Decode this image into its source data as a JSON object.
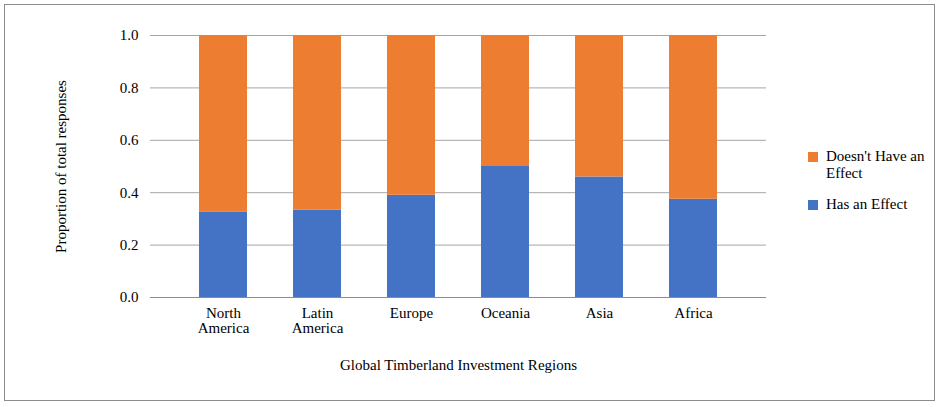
{
  "chart_data": {
    "type": "bar",
    "stacked": true,
    "categories": [
      "North America",
      "Latin America",
      "Europe",
      "Oceania",
      "Asia",
      "Africa"
    ],
    "series": [
      {
        "name": "Has an Effect",
        "color": "#4472c4",
        "values": [
          0.325,
          0.333,
          0.39,
          0.5,
          0.46,
          0.375
        ]
      },
      {
        "name": "Doesn't Have an Effect",
        "color": "#ed7d31",
        "values": [
          0.675,
          0.667,
          0.61,
          0.5,
          0.54,
          0.625
        ]
      }
    ],
    "x_label": "Global Timberland Investment Regions",
    "y_label": "Proportion of total responses",
    "ylim": [
      0,
      1
    ],
    "yticks": [
      {
        "value": 0,
        "label": "0.0"
      },
      0.2,
      0.4,
      0.6,
      0.8,
      {
        "value": 1,
        "label": "1.0"
      }
    ],
    "grid": true,
    "legend": "right"
  }
}
